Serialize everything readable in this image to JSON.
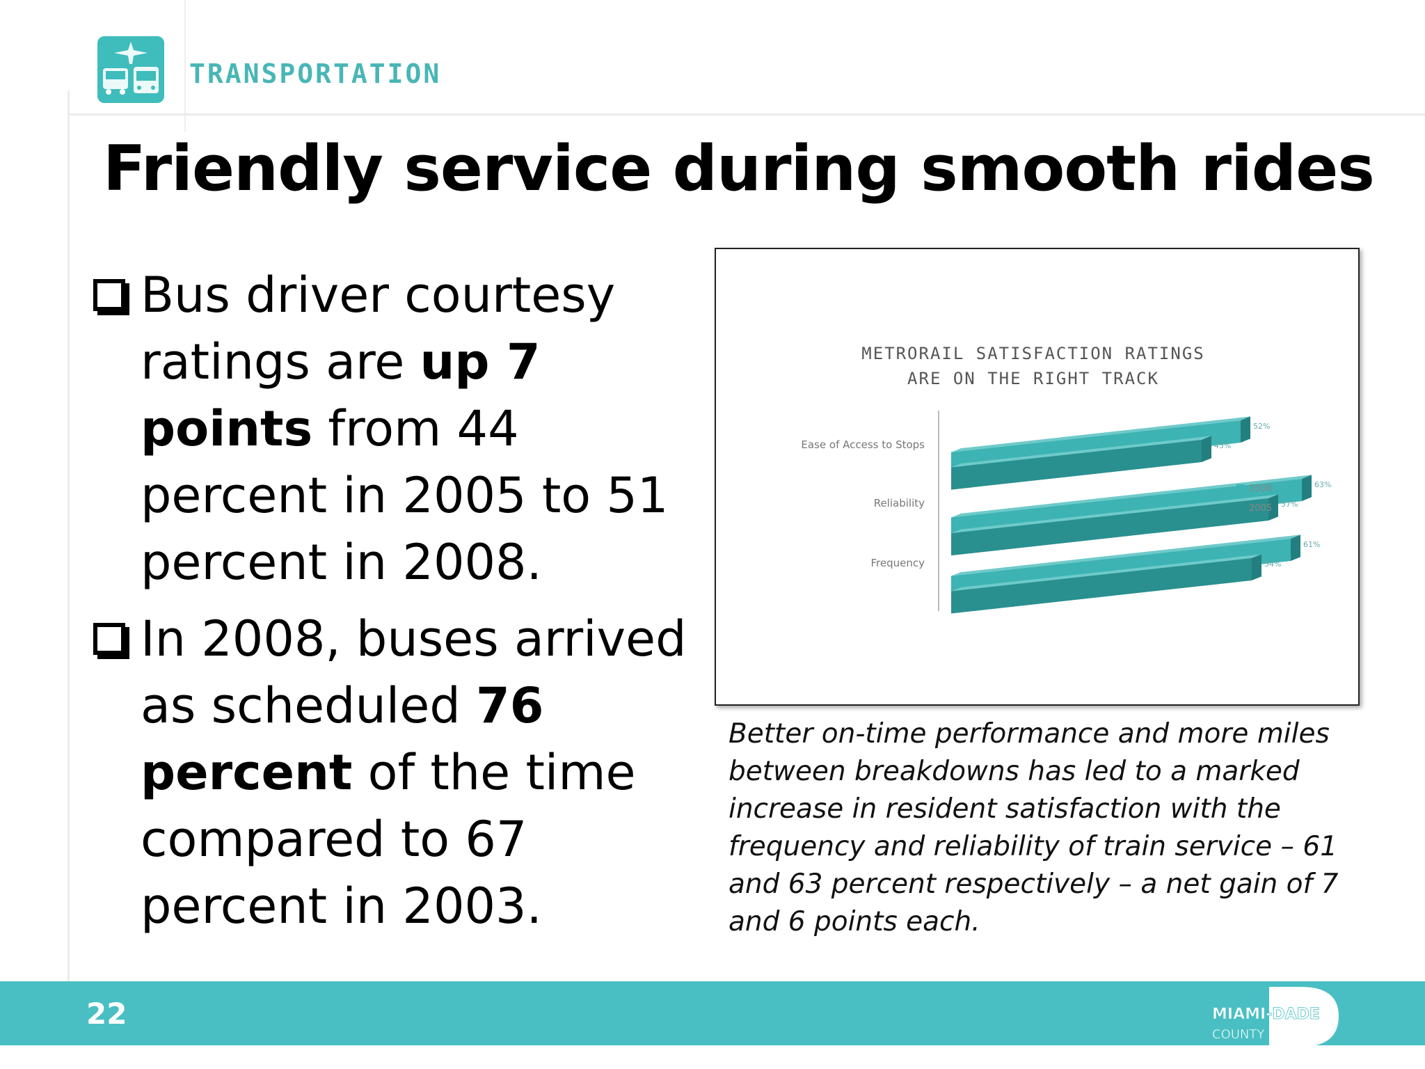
{
  "header": {
    "brand": "TRANSPORTATION",
    "logo_icon": "transportation-logo-icon"
  },
  "title": "Friendly service during smooth rides",
  "bullets": [
    {
      "t1": "Bus driver courtesy ratings are ",
      "b1": "up 7 points",
      "t2": " from 44 percent in 2005 to 51 percent in 2008."
    },
    {
      "t1": "In 2008, buses arrived as scheduled ",
      "b1": "76 percent",
      "t2": " of the time compared to 67 percent in 2003."
    }
  ],
  "chart_data": {
    "type": "bar",
    "orientation": "horizontal",
    "title_line1": "METRORAIL SATISFACTION RATINGS",
    "title_line2": "ARE ON THE RIGHT TRACK",
    "categories": [
      "Ease of Access to Stops",
      "Reliability",
      "Frequency"
    ],
    "series": [
      {
        "name": "2008",
        "values": [
          52,
          63,
          61
        ],
        "labels": [
          "52%",
          "63%",
          "61%"
        ]
      },
      {
        "name": "2005",
        "values": [
          45,
          57,
          54
        ],
        "labels": [
          "45%",
          "57%",
          "54%"
        ]
      }
    ],
    "xlim": [
      0,
      70
    ],
    "legend_position": "right",
    "colors": {
      "2008": "#3db3b3",
      "2005": "#2a8f8f"
    }
  },
  "caption": "Better on-time performance and more miles between breakdowns has led to a marked increase in resident satisfaction with the frequency and reliability of train service – 61 and 63 percent respectively – a net gain of 7 and 6 points each.",
  "footer": {
    "page_number": "22",
    "logo_line1": "MIAMI-DADE",
    "logo_line2": "COUNTY",
    "color": "#49bfc3"
  }
}
